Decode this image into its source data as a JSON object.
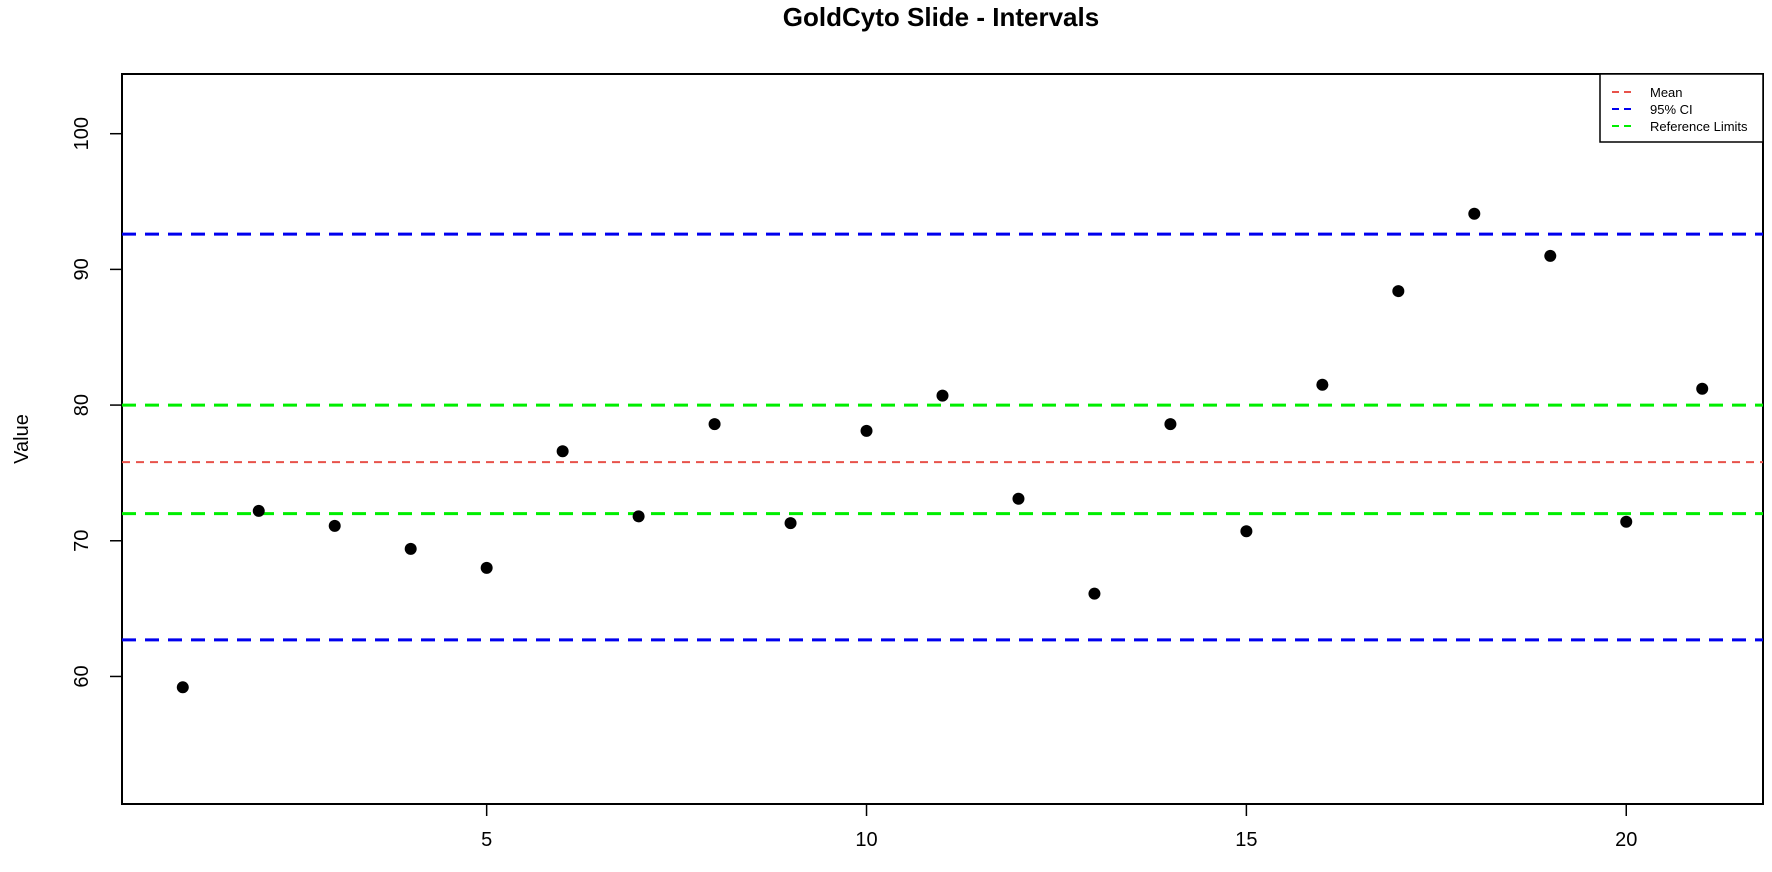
{
  "chart_data": {
    "type": "scatter",
    "title": "GoldCyto Slide - Intervals",
    "xlabel": "",
    "ylabel": "Value",
    "xlim": [
      0.2,
      21.8
    ],
    "ylim": [
      50.6,
      104.4
    ],
    "x_ticks": [
      5,
      10,
      15,
      20
    ],
    "y_ticks": [
      60,
      70,
      80,
      90,
      100
    ],
    "grid": false,
    "legend_position": "top-right",
    "series": [
      {
        "color": "#000000",
        "marker": "filled-circle",
        "points": [
          {
            "x": 1,
            "y": 59.2
          },
          {
            "x": 2,
            "y": 72.2
          },
          {
            "x": 3,
            "y": 71.1
          },
          {
            "x": 4,
            "y": 69.4
          },
          {
            "x": 5,
            "y": 68.0
          },
          {
            "x": 6,
            "y": 76.6
          },
          {
            "x": 7,
            "y": 71.8
          },
          {
            "x": 8,
            "y": 78.6
          },
          {
            "x": 9,
            "y": 71.3
          },
          {
            "x": 10,
            "y": 78.1
          },
          {
            "x": 11,
            "y": 80.7
          },
          {
            "x": 12,
            "y": 73.1
          },
          {
            "x": 13,
            "y": 66.1
          },
          {
            "x": 14,
            "y": 78.6
          },
          {
            "x": 15,
            "y": 70.7
          },
          {
            "x": 16,
            "y": 81.5
          },
          {
            "x": 17,
            "y": 88.4
          },
          {
            "x": 18,
            "y": 94.1
          },
          {
            "x": 19,
            "y": 91.0
          },
          {
            "x": 20,
            "y": 71.4
          },
          {
            "x": 21,
            "y": 81.2
          }
        ]
      }
    ],
    "reference_lines": [
      {
        "name": "Mean",
        "y": 75.8,
        "color": "#e8524a",
        "style": "dashed"
      },
      {
        "name": "95% CI",
        "y": 92.6,
        "color": "#0000ee",
        "style": "dashed"
      },
      {
        "name": "95% CI",
        "y": 62.7,
        "color": "#0000ee",
        "style": "dashed"
      },
      {
        "name": "Reference Limits",
        "y": 80.0,
        "color": "#00ee00",
        "style": "dashed"
      },
      {
        "name": "Reference Limits",
        "y": 72.0,
        "color": "#00ee00",
        "style": "dashed"
      }
    ],
    "legend": [
      {
        "label": "Mean",
        "color": "#e8524a"
      },
      {
        "label": "95% CI",
        "color": "#0000ee"
      },
      {
        "label": "Reference Limits",
        "color": "#00ee00"
      }
    ]
  }
}
